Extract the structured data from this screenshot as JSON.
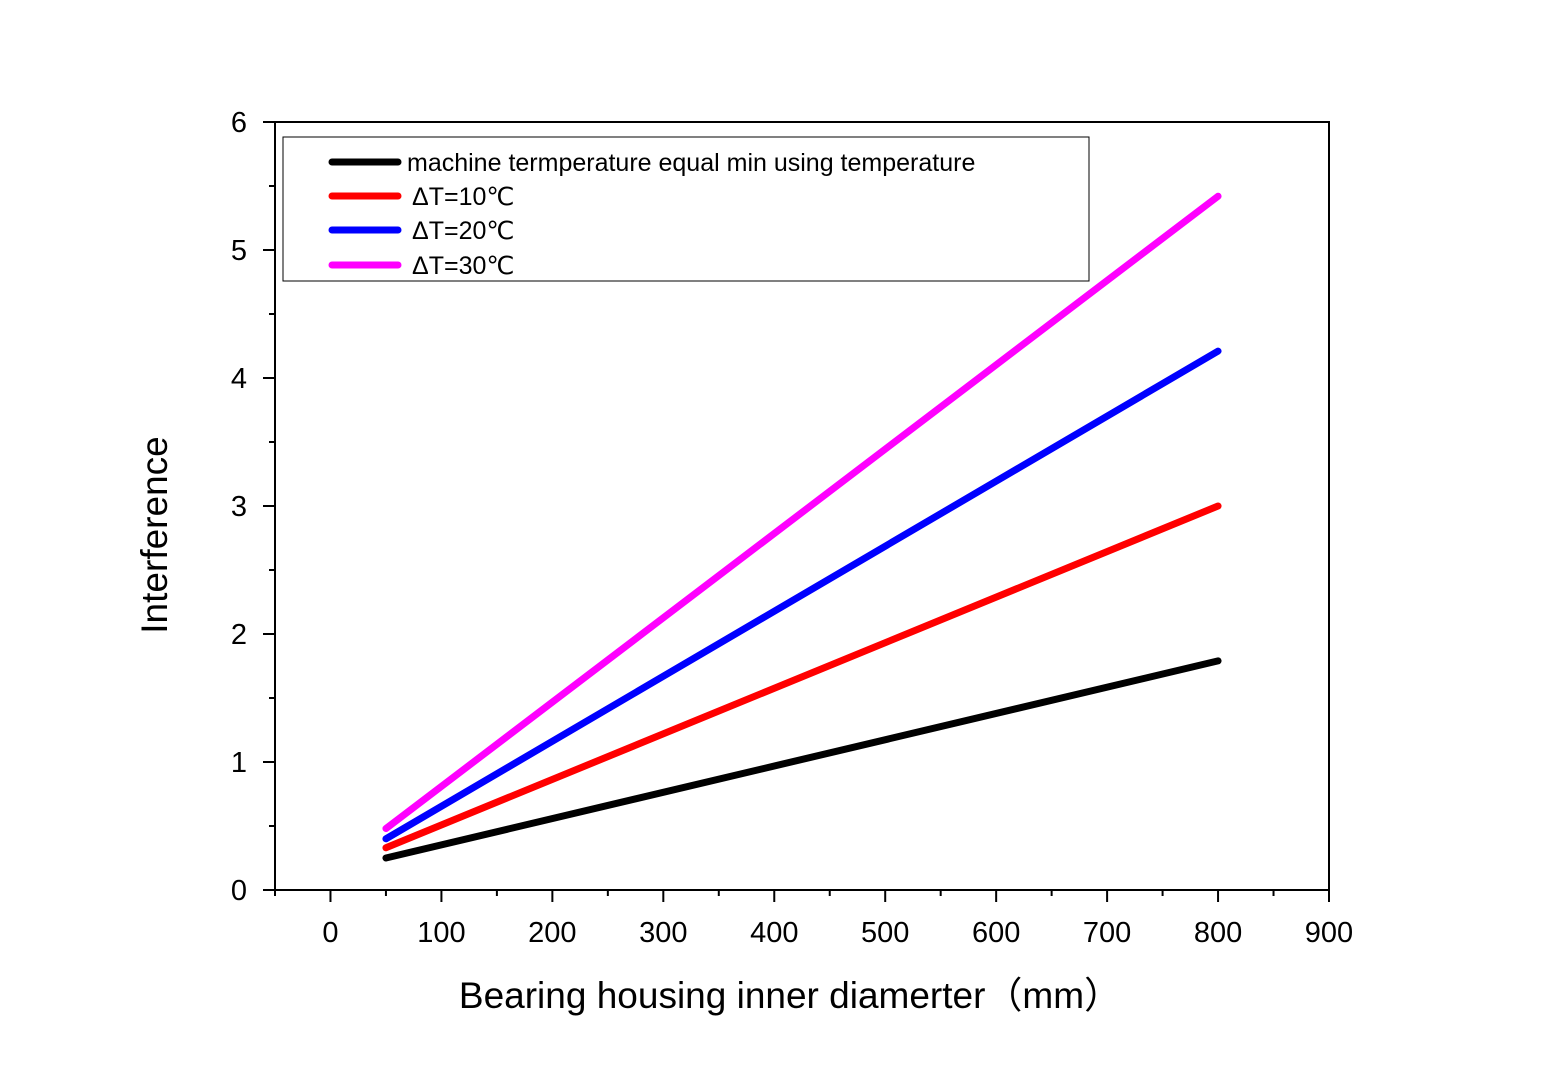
{
  "chart_data": {
    "type": "line",
    "title": "",
    "xlabel": "Bearing housing inner diamerter（mm）",
    "ylabel": "Interference",
    "xlim": [
      -50,
      900
    ],
    "ylim": [
      0,
      6
    ],
    "x_ticks": [
      "0",
      "100",
      "200",
      "300",
      "400",
      "500",
      "600",
      "700",
      "800",
      "900"
    ],
    "y_ticks": [
      "0",
      "1",
      "2",
      "3",
      "4",
      "5",
      "6"
    ],
    "grid": false,
    "legend_position": "top-left",
    "series": [
      {
        "name": "machine termperature equal min using temperature",
        "color": "#000000",
        "x": [
          50,
          800
        ],
        "y": [
          0.25,
          1.79
        ]
      },
      {
        "name": "ΔT=10℃",
        "color": "#ff0000",
        "x": [
          50,
          800
        ],
        "y": [
          0.33,
          3.0
        ]
      },
      {
        "name": "ΔT=20℃",
        "color": "#0000ff",
        "x": [
          50,
          800
        ],
        "y": [
          0.4,
          4.21
        ]
      },
      {
        "name": "ΔT=30℃",
        "color": "#ff00ff",
        "x": [
          50,
          800
        ],
        "y": [
          0.48,
          5.42
        ]
      }
    ]
  }
}
